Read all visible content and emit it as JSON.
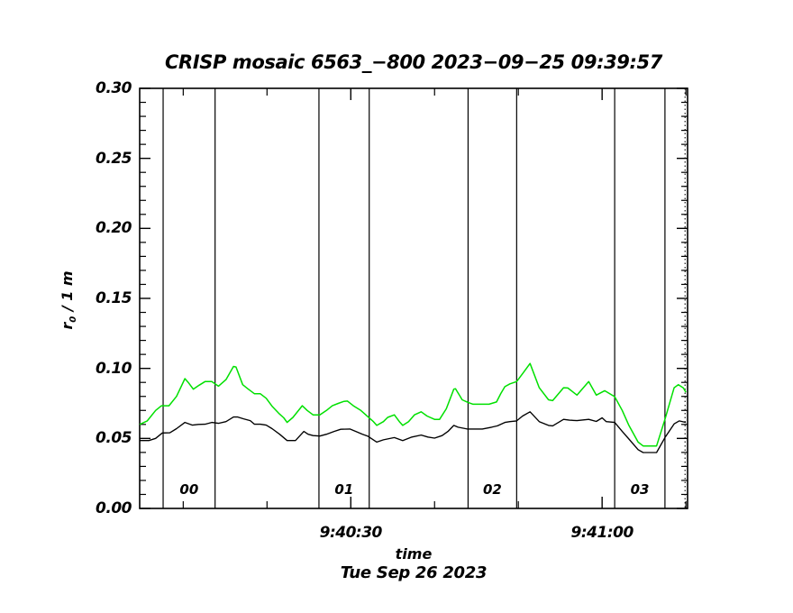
{
  "chart_data": {
    "type": "line",
    "title": "CRISP mosaic 6563_−800 2023−09−25 09:39:57",
    "xlabel": "time",
    "xlabel2": "Tue Sep 26 2023",
    "ylabel": {
      "main": "r",
      "sub": "0",
      "rest": " / 1 m"
    },
    "xlim_seconds": [
      4.8,
      70.2
    ],
    "ylim": [
      0.0,
      0.3
    ],
    "grid": false,
    "legend": "none",
    "x_ticks": [
      {
        "s": 30,
        "label": "9:40:30"
      },
      {
        "s": 60,
        "label": "9:41:00"
      }
    ],
    "x_minor_ticks_s": [
      10,
      20,
      40,
      50,
      70
    ],
    "y_ticks": [
      {
        "v": 0.0,
        "label": "0.00"
      },
      {
        "v": 0.05,
        "label": "0.05"
      },
      {
        "v": 0.1,
        "label": "0.10"
      },
      {
        "v": 0.15,
        "label": "0.15"
      },
      {
        "v": 0.2,
        "label": "0.20"
      },
      {
        "v": 0.25,
        "label": "0.25"
      },
      {
        "v": 0.3,
        "label": "0.30"
      }
    ],
    "y_minor_step": 0.01,
    "segments": [
      {
        "label": "00",
        "start_s": 7.6,
        "end_s": 13.8
      },
      {
        "label": "01",
        "start_s": 26.2,
        "end_s": 32.2
      },
      {
        "label": "02",
        "start_s": 44.0,
        "end_s": 49.8
      },
      {
        "label": "03",
        "start_s": 61.5,
        "end_s": 67.5
      }
    ],
    "right_dotted_boundary_s": 69.9,
    "axis_color": "#000000",
    "series": [
      {
        "name": "green",
        "color": "#00e000",
        "points": [
          [
            4.8,
            0.06
          ],
          [
            5.7,
            0.0625
          ],
          [
            6.7,
            0.07
          ],
          [
            7.4,
            0.0733
          ],
          [
            8.3,
            0.0733
          ],
          [
            9.2,
            0.08
          ],
          [
            10.2,
            0.0927
          ],
          [
            10.6,
            0.09
          ],
          [
            11.2,
            0.0852
          ],
          [
            11.9,
            0.088
          ],
          [
            12.6,
            0.0906
          ],
          [
            13.4,
            0.0906
          ],
          [
            14.2,
            0.0873
          ],
          [
            15.1,
            0.092
          ],
          [
            16.0,
            0.1014
          ],
          [
            16.3,
            0.101
          ],
          [
            17.1,
            0.0884
          ],
          [
            17.7,
            0.0855
          ],
          [
            18.5,
            0.0819
          ],
          [
            19.2,
            0.0819
          ],
          [
            19.9,
            0.0787
          ],
          [
            20.6,
            0.073
          ],
          [
            21.4,
            0.068
          ],
          [
            22.0,
            0.0647
          ],
          [
            22.4,
            0.0614
          ],
          [
            23.1,
            0.065
          ],
          [
            24.2,
            0.0733
          ],
          [
            24.8,
            0.07
          ],
          [
            25.5,
            0.0668
          ],
          [
            26.3,
            0.0668
          ],
          [
            27.1,
            0.07
          ],
          [
            27.8,
            0.0733
          ],
          [
            28.5,
            0.075
          ],
          [
            29.2,
            0.0765
          ],
          [
            29.6,
            0.0767
          ],
          [
            30.3,
            0.0733
          ],
          [
            31.2,
            0.07
          ],
          [
            32.0,
            0.0657
          ],
          [
            32.7,
            0.062
          ],
          [
            33.1,
            0.0593
          ],
          [
            33.9,
            0.062
          ],
          [
            34.4,
            0.065
          ],
          [
            35.2,
            0.0668
          ],
          [
            35.8,
            0.062
          ],
          [
            36.2,
            0.0593
          ],
          [
            36.9,
            0.062
          ],
          [
            37.6,
            0.0668
          ],
          [
            38.4,
            0.069
          ],
          [
            39.1,
            0.066
          ],
          [
            40.0,
            0.0636
          ],
          [
            40.6,
            0.0636
          ],
          [
            41.4,
            0.0712
          ],
          [
            42.3,
            0.0852
          ],
          [
            42.5,
            0.0855
          ],
          [
            43.3,
            0.0776
          ],
          [
            44.0,
            0.0757
          ],
          [
            44.6,
            0.0744
          ],
          [
            45.5,
            0.0744
          ],
          [
            46.5,
            0.0744
          ],
          [
            47.4,
            0.076
          ],
          [
            47.9,
            0.082
          ],
          [
            48.4,
            0.087
          ],
          [
            49.0,
            0.089
          ],
          [
            49.8,
            0.0906
          ],
          [
            50.6,
            0.097
          ],
          [
            51.4,
            0.1035
          ],
          [
            52.5,
            0.0862
          ],
          [
            53.6,
            0.0776
          ],
          [
            54.1,
            0.077
          ],
          [
            55.4,
            0.0862
          ],
          [
            55.9,
            0.086
          ],
          [
            57.0,
            0.0809
          ],
          [
            58.4,
            0.0906
          ],
          [
            59.3,
            0.0809
          ],
          [
            60.3,
            0.0841
          ],
          [
            61.5,
            0.0798
          ],
          [
            62.4,
            0.07
          ],
          [
            63.2,
            0.0593
          ],
          [
            64.3,
            0.0474
          ],
          [
            64.9,
            0.0446
          ],
          [
            66.5,
            0.0446
          ],
          [
            67.5,
            0.0636
          ],
          [
            68.6,
            0.0862
          ],
          [
            69.1,
            0.0884
          ],
          [
            69.7,
            0.086
          ],
          [
            70.0,
            0.083
          ]
        ]
      },
      {
        "name": "black",
        "color": "#000000",
        "points": [
          [
            4.8,
            0.0485
          ],
          [
            5.9,
            0.0485
          ],
          [
            6.7,
            0.05
          ],
          [
            7.5,
            0.0539
          ],
          [
            8.4,
            0.054
          ],
          [
            9.2,
            0.057
          ],
          [
            10.2,
            0.0614
          ],
          [
            11.1,
            0.0595
          ],
          [
            11.8,
            0.06
          ],
          [
            12.6,
            0.0601
          ],
          [
            13.4,
            0.0614
          ],
          [
            14.2,
            0.0608
          ],
          [
            15.1,
            0.062
          ],
          [
            16.0,
            0.0653
          ],
          [
            16.5,
            0.0653
          ],
          [
            17.2,
            0.064
          ],
          [
            18.0,
            0.0627
          ],
          [
            18.5,
            0.0601
          ],
          [
            19.2,
            0.0601
          ],
          [
            19.9,
            0.0595
          ],
          [
            20.6,
            0.057
          ],
          [
            21.5,
            0.053
          ],
          [
            22.4,
            0.0485
          ],
          [
            23.4,
            0.0485
          ],
          [
            24.4,
            0.055
          ],
          [
            24.9,
            0.053
          ],
          [
            25.5,
            0.052
          ],
          [
            26.3,
            0.0517
          ],
          [
            27.1,
            0.053
          ],
          [
            28.0,
            0.055
          ],
          [
            28.8,
            0.0565
          ],
          [
            29.9,
            0.0567
          ],
          [
            30.6,
            0.055
          ],
          [
            31.4,
            0.053
          ],
          [
            32.0,
            0.0517
          ],
          [
            33.1,
            0.0474
          ],
          [
            33.9,
            0.049
          ],
          [
            35.2,
            0.0506
          ],
          [
            36.2,
            0.0484
          ],
          [
            37.3,
            0.051
          ],
          [
            38.4,
            0.0524
          ],
          [
            39.2,
            0.051
          ],
          [
            40.0,
            0.0502
          ],
          [
            40.9,
            0.052
          ],
          [
            41.6,
            0.055
          ],
          [
            42.3,
            0.0593
          ],
          [
            42.8,
            0.058
          ],
          [
            43.9,
            0.0567
          ],
          [
            44.8,
            0.0567
          ],
          [
            45.7,
            0.0567
          ],
          [
            46.8,
            0.058
          ],
          [
            47.5,
            0.059
          ],
          [
            48.4,
            0.0614
          ],
          [
            49.0,
            0.062
          ],
          [
            49.8,
            0.0625
          ],
          [
            50.5,
            0.066
          ],
          [
            51.4,
            0.069
          ],
          [
            52.5,
            0.062
          ],
          [
            53.6,
            0.0593
          ],
          [
            54.1,
            0.059
          ],
          [
            55.4,
            0.0636
          ],
          [
            56.1,
            0.063
          ],
          [
            57.0,
            0.0627
          ],
          [
            58.4,
            0.0636
          ],
          [
            59.3,
            0.0621
          ],
          [
            60.0,
            0.0647
          ],
          [
            60.5,
            0.062
          ],
          [
            61.5,
            0.0614
          ],
          [
            62.4,
            0.055
          ],
          [
            63.2,
            0.0496
          ],
          [
            64.3,
            0.042
          ],
          [
            64.9,
            0.0399
          ],
          [
            66.5,
            0.0399
          ],
          [
            67.5,
            0.0506
          ],
          [
            68.6,
            0.0604
          ],
          [
            69.2,
            0.0625
          ],
          [
            70.0,
            0.0614
          ]
        ]
      }
    ]
  }
}
